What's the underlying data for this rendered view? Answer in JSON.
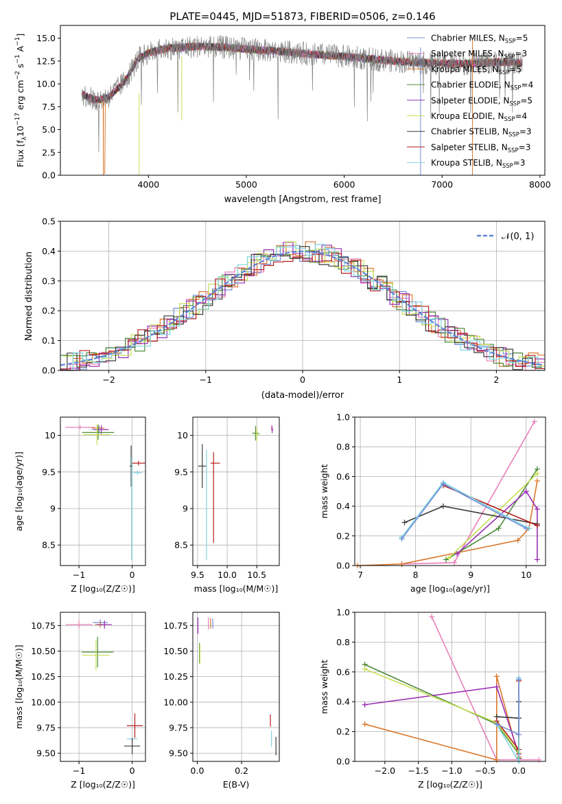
{
  "figure": {
    "title": "PLATE=0445, MJD=51873, FIBERID=0506, z=0.146"
  },
  "colors": {
    "series": [
      "#6f8fd8",
      "#e87fb8",
      "#d9782d",
      "#4c8a3a",
      "#9a2fb3",
      "#c6df55",
      "#3a3a3a",
      "#b41c1c",
      "#7fd3df"
    ]
  },
  "series_names": [
    {
      "base": "Chabrier MILES, N",
      "sub": "SSP",
      "val": "=5"
    },
    {
      "base": "Salpeter MILES, N",
      "sub": "SSP",
      "val": "=3"
    },
    {
      "base": "Kroupa MILES, N",
      "sub": "SSP",
      "val": "=5"
    },
    {
      "base": "Chabrier ELODIE, N",
      "sub": "SSP",
      "val": "=4"
    },
    {
      "base": "Salpeter ELODIE, N",
      "sub": "SSP",
      "val": "=5"
    },
    {
      "base": "Kroupa ELODIE, N",
      "sub": "SSP",
      "val": "=4"
    },
    {
      "base": "Chabrier STELIB, N",
      "sub": "SSP",
      "val": "=3"
    },
    {
      "base": "Salpeter STELIB, N",
      "sub": "SSP",
      "val": "=3"
    },
    {
      "base": "Kroupa STELIB, N",
      "sub": "SSP",
      "val": "=3"
    }
  ],
  "chart_data": [
    {
      "id": "spectrum",
      "type": "line",
      "xlabel": "wavelength [Angstrom, rest frame]",
      "ylabel_parts": [
        "Flux [f",
        "λ",
        "10",
        "−17",
        " erg cm",
        "−2",
        " s",
        "−1",
        " A",
        "−1",
        "]"
      ],
      "xlim": [
        3100,
        8050
      ],
      "ylim": [
        0,
        16.4
      ],
      "xticks": [
        4000,
        5000,
        6000,
        7000,
        8000
      ],
      "yticks": [
        0.0,
        2.5,
        5.0,
        7.5,
        10.0,
        12.5,
        15.0
      ],
      "legend_position": "right",
      "continuum": [
        [
          3320,
          8.9
        ],
        [
          3450,
          8.2
        ],
        [
          3600,
          8.6
        ],
        [
          3750,
          10.2
        ],
        [
          3900,
          12.8
        ],
        [
          4000,
          13.4
        ],
        [
          4200,
          13.9
        ],
        [
          4500,
          14.1
        ],
        [
          4800,
          14.0
        ],
        [
          5000,
          13.8
        ],
        [
          5300,
          13.6
        ],
        [
          5600,
          13.3
        ],
        [
          6000,
          13.0
        ],
        [
          6400,
          12.6
        ],
        [
          6800,
          12.3
        ],
        [
          7200,
          12.2
        ],
        [
          7600,
          12.4
        ],
        [
          7800,
          12.3
        ]
      ]
    },
    {
      "id": "residuals",
      "type": "line",
      "xlabel": "(data-model)/error",
      "ylabel": "Normed distribution",
      "xlim": [
        -2.5,
        2.5
      ],
      "ylim": [
        0,
        0.5
      ],
      "xticks": [
        -2,
        -1,
        0,
        1,
        2
      ],
      "xtick_labels": [
        "−2",
        "−1",
        "0",
        "1",
        "2"
      ],
      "yticks": [
        0.0,
        0.1,
        0.2,
        0.3,
        0.4,
        0.5
      ],
      "legend_label": "𝒩(0, 1)",
      "legend_position": "top-right",
      "bin_width": 0.1
    },
    {
      "id": "age_vs_Z",
      "type": "scatter",
      "xlabel": "Z [log₁₀(Z/Z☉)]",
      "ylabel": "age  [log₁₀(age/yr)]",
      "xlim": [
        -1.35,
        0.25
      ],
      "ylim": [
        8.22,
        10.25
      ],
      "xticks": [
        -1,
        0
      ],
      "xtick_labels": [
        "−1",
        "0"
      ],
      "yticks": [
        8.5,
        9.0,
        9.5,
        10.0
      ],
      "points": [
        {
          "s": 1,
          "x": -0.98,
          "y": 10.11,
          "xerr": 0.28,
          "yerr": 0.03
        },
        {
          "s": 0,
          "x": -0.62,
          "y": 10.08,
          "xerr": 0.14,
          "yerr": 0.05
        },
        {
          "s": 2,
          "x": -0.64,
          "y": 10.1,
          "xerr": 0.12,
          "yerr": 0.05
        },
        {
          "s": 4,
          "x": -0.58,
          "y": 10.08,
          "xerr": 0.14,
          "yerr": 0.06
        },
        {
          "s": 3,
          "x": -0.64,
          "y": 10.04,
          "xerr": 0.3,
          "yerr": 0.1
        },
        {
          "s": 5,
          "x": -0.66,
          "y": 10.01,
          "xerr": 0.26,
          "yerr": 0.14
        },
        {
          "s": 6,
          "x": -0.02,
          "y": 9.58,
          "xerr": 0.03,
          "yerr": 0.28
        },
        {
          "s": 7,
          "x": 0.12,
          "y": 9.62,
          "xerr": 0.12,
          "yerr": 0.03
        },
        {
          "s": 8,
          "x": 0.1,
          "y": 9.49,
          "xerr": 0.08,
          "yerr": 0.03
        },
        {
          "s": 8,
          "x": -0.01,
          "y": 9.0,
          "xerr": 0.0,
          "yerr": 0.7
        }
      ]
    },
    {
      "id": "age_vs_mass",
      "type": "scatter",
      "xlabel": "mass [log₁₀(M/M☉)]",
      "xlim": [
        9.42,
        10.88
      ],
      "ylim": [
        8.22,
        10.25
      ],
      "xticks": [
        9.5,
        10.0,
        10.5
      ],
      "xtick_labels": [
        "9.5",
        "10.0",
        "10.5"
      ],
      "yticks": [
        8.5,
        9.0,
        9.5,
        10.0
      ],
      "points": [
        {
          "s": 6,
          "x": 9.58,
          "y": 9.58,
          "xerr": 0.07,
          "yerr": 0.3
        },
        {
          "s": 8,
          "x": 9.65,
          "y": 9.05,
          "xerr": 0.0,
          "yerr": 0.75
        },
        {
          "s": 7,
          "x": 9.77,
          "y": 9.15,
          "xerr": 0.0,
          "yerr": 0.62
        },
        {
          "s": 7,
          "x": 9.8,
          "y": 9.62,
          "xerr": 0.08,
          "yerr": 0.0
        },
        {
          "s": 3,
          "x": 10.48,
          "y": 10.03,
          "xerr": 0.06,
          "yerr": 0.1
        },
        {
          "s": 5,
          "x": 10.5,
          "y": 10.01,
          "xerr": 0.05,
          "yerr": 0.1
        },
        {
          "s": 4,
          "x": 10.76,
          "y": 10.08,
          "xerr": 0.02,
          "yerr": 0.05
        },
        {
          "s": 1,
          "x": 10.75,
          "y": 10.11,
          "xerr": 0.01,
          "yerr": 0.03
        }
      ]
    },
    {
      "id": "mass_weight_vs_age",
      "type": "line",
      "xlabel": "age  [log₁₀(age/yr)]",
      "ylabel": "mass weight",
      "xlim": [
        6.9,
        10.35
      ],
      "ylim": [
        0,
        1.0
      ],
      "xticks": [
        7,
        8,
        9,
        10
      ],
      "yticks": [
        0.0,
        0.2,
        0.4,
        0.6,
        0.8,
        1.0
      ],
      "series": [
        {
          "s": 1,
          "points": [
            [
              7.75,
              0.01
            ],
            [
              8.7,
              0.02
            ],
            [
              10.15,
              0.97
            ]
          ]
        },
        {
          "s": 2,
          "points": [
            [
              6.95,
              0.0
            ],
            [
              7.75,
              0.01
            ],
            [
              9.85,
              0.17
            ],
            [
              10.05,
              0.25
            ],
            [
              10.2,
              0.57
            ]
          ]
        },
        {
          "s": 3,
          "points": [
            [
              8.55,
              0.04
            ],
            [
              9.5,
              0.25
            ],
            [
              10.2,
              0.65
            ]
          ]
        },
        {
          "s": 4,
          "points": [
            [
              8.75,
              0.08
            ],
            [
              10.0,
              0.5
            ],
            [
              10.2,
              0.38
            ],
            [
              10.2,
              0.04
            ]
          ]
        },
        {
          "s": 5,
          "points": [
            [
              8.6,
              0.05
            ],
            [
              10.2,
              0.62
            ]
          ]
        },
        {
          "s": 6,
          "points": [
            [
              7.8,
              0.29
            ],
            [
              8.5,
              0.4
            ],
            [
              10.2,
              0.28
            ]
          ]
        },
        {
          "s": 7,
          "points": [
            [
              8.5,
              0.54
            ],
            [
              10.2,
              0.27
            ]
          ]
        },
        {
          "s": 8,
          "points": [
            [
              7.75,
              0.19
            ],
            [
              8.5,
              0.56
            ],
            [
              10.05,
              0.25
            ]
          ]
        },
        {
          "s": 0,
          "points": [
            [
              7.75,
              0.18
            ],
            [
              8.5,
              0.55
            ],
            [
              10.0,
              0.25
            ]
          ]
        }
      ]
    },
    {
      "id": "mass_vs_Z",
      "type": "scatter",
      "xlabel": "Z [log₁₀(Z/Z☉)]",
      "ylabel": "mass [log₁₀(M/M☉)]",
      "xlim": [
        -1.35,
        0.25
      ],
      "ylim": [
        9.42,
        10.88
      ],
      "xticks": [
        -1,
        0
      ],
      "xtick_labels": [
        "−1",
        "0"
      ],
      "yticks": [
        9.5,
        9.75,
        10.0,
        10.25,
        10.5,
        10.75
      ],
      "points": [
        {
          "s": 1,
          "x": -1.0,
          "y": 10.76,
          "xerr": 0.25,
          "yerr": 0.04
        },
        {
          "s": 0,
          "x": -0.6,
          "y": 10.78,
          "xerr": 0.14,
          "yerr": 0.03
        },
        {
          "s": 2,
          "x": -0.6,
          "y": 10.76,
          "xerr": 0.1,
          "yerr": 0.03
        },
        {
          "s": 4,
          "x": -0.52,
          "y": 10.76,
          "xerr": 0.14,
          "yerr": 0.04
        },
        {
          "s": 3,
          "x": -0.65,
          "y": 10.49,
          "xerr": 0.3,
          "yerr": 0.15
        },
        {
          "s": 5,
          "x": -0.68,
          "y": 10.46,
          "xerr": 0.26,
          "yerr": 0.15
        },
        {
          "s": 7,
          "x": 0.05,
          "y": 9.77,
          "xerr": 0.15,
          "yerr": 0.12
        },
        {
          "s": 8,
          "x": 0.0,
          "y": 9.64,
          "xerr": 0.1,
          "yerr": 0.0
        },
        {
          "s": 6,
          "x": 0.0,
          "y": 9.57,
          "xerr": 0.15,
          "yerr": 0.08
        }
      ]
    },
    {
      "id": "mass_vs_ebv",
      "type": "scatter",
      "xlabel": "E(B-V)",
      "xlim": [
        -0.02,
        0.37
      ],
      "ylim": [
        9.42,
        10.88
      ],
      "xticks": [
        0.0,
        0.2
      ],
      "xtick_labels": [
        "0.0",
        "0.2"
      ],
      "yticks": [
        9.5,
        9.75,
        10.0,
        10.25,
        10.5,
        10.75
      ],
      "points": [
        {
          "s": 4,
          "x": 0.003,
          "y": 10.75,
          "xerr": 0.0,
          "yerr": 0.08
        },
        {
          "s": 1,
          "x": 0.05,
          "y": 10.77,
          "xerr": 0.0,
          "yerr": 0.06
        },
        {
          "s": 2,
          "x": 0.06,
          "y": 10.77,
          "xerr": 0.0,
          "yerr": 0.05
        },
        {
          "s": 0,
          "x": 0.07,
          "y": 10.77,
          "xerr": 0.0,
          "yerr": 0.05
        },
        {
          "s": 3,
          "x": 0.01,
          "y": 10.48,
          "xerr": 0.0,
          "yerr": 0.1
        },
        {
          "s": 5,
          "x": 0.012,
          "y": 10.47,
          "xerr": 0.0,
          "yerr": 0.1
        },
        {
          "s": 7,
          "x": 0.33,
          "y": 9.82,
          "xerr": 0.0,
          "yerr": 0.06
        },
        {
          "s": 8,
          "x": 0.335,
          "y": 9.64,
          "xerr": 0.0,
          "yerr": 0.08
        },
        {
          "s": 6,
          "x": 0.355,
          "y": 9.57,
          "xerr": 0.0,
          "yerr": 0.09
        }
      ]
    },
    {
      "id": "mass_weight_vs_Z",
      "type": "line",
      "xlabel": "Z [log₁₀(Z/Z☉)]",
      "ylabel": "mass weight",
      "xlim": [
        -2.45,
        0.4
      ],
      "ylim": [
        0,
        1.0
      ],
      "xticks": [
        -2.0,
        -1.5,
        -1.0,
        -0.5,
        0.0
      ],
      "xtick_labels": [
        "−2.0",
        "−1.5",
        "−1.0",
        "−0.5",
        "0.0"
      ],
      "yticks": [
        0.0,
        0.2,
        0.4,
        0.6,
        0.8,
        1.0
      ],
      "series": [
        {
          "s": 1,
          "points": [
            [
              -1.3,
              0.97
            ],
            [
              -0.33,
              0.01
            ],
            [
              0.3,
              0.01
            ]
          ]
        },
        {
          "s": 2,
          "points": [
            [
              -2.3,
              0.25
            ],
            [
              -0.33,
              0.01
            ],
            [
              -0.33,
              0.57
            ],
            [
              0.0,
              0.03
            ],
            [
              0.0,
              0.55
            ]
          ]
        },
        {
          "s": 3,
          "points": [
            [
              -2.3,
              0.65
            ],
            [
              -0.33,
              0.25
            ],
            [
              0.0,
              0.05
            ]
          ]
        },
        {
          "s": 4,
          "points": [
            [
              -2.3,
              0.38
            ],
            [
              -0.33,
              0.5
            ],
            [
              0.0,
              0.05
            ]
          ]
        },
        {
          "s": 5,
          "points": [
            [
              -2.3,
              0.62
            ],
            [
              -0.33,
              0.26
            ],
            [
              0.0,
              0.06
            ]
          ]
        },
        {
          "s": 6,
          "points": [
            [
              -0.33,
              0.3
            ],
            [
              0.0,
              0.29
            ],
            [
              0.0,
              0.4
            ],
            [
              0.0,
              0.02
            ]
          ]
        },
        {
          "s": 7,
          "points": [
            [
              -0.33,
              0.27
            ],
            [
              0.0,
              0.08
            ],
            [
              0.0,
              0.54
            ]
          ]
        },
        {
          "s": 8,
          "points": [
            [
              -0.33,
              0.25
            ],
            [
              0.0,
              0.0
            ],
            [
              0.0,
              0.56
            ]
          ]
        },
        {
          "s": 0,
          "points": [
            [
              -0.33,
              0.25
            ],
            [
              0.0,
              0.18
            ],
            [
              0.0,
              0.55
            ]
          ]
        }
      ]
    }
  ]
}
